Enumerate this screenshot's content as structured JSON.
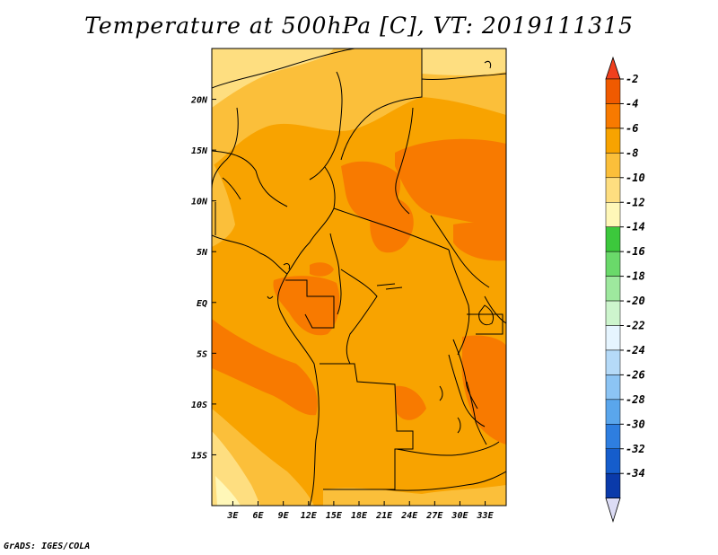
{
  "title": "Temperature at 500hPa [C], VT: 2019111315",
  "credit": "GrADS: IGES/COLA",
  "map": {
    "lon_range": [
      0.5,
      35.5
    ],
    "lat_range": [
      -20,
      25
    ],
    "lat_ticks": [
      {
        "value": 20,
        "label": "20N"
      },
      {
        "value": 15,
        "label": "15N"
      },
      {
        "value": 10,
        "label": "10N"
      },
      {
        "value": 5,
        "label": "5N"
      },
      {
        "value": 0,
        "label": "EQ"
      },
      {
        "value": -5,
        "label": "5S"
      },
      {
        "value": -10,
        "label": "10S"
      },
      {
        "value": -15,
        "label": "15S"
      }
    ],
    "lon_ticks": [
      {
        "value": 3,
        "label": "3E"
      },
      {
        "value": 6,
        "label": "6E"
      },
      {
        "value": 9,
        "label": "9E"
      },
      {
        "value": 12,
        "label": "12E"
      },
      {
        "value": 15,
        "label": "15E"
      },
      {
        "value": 18,
        "label": "18E"
      },
      {
        "value": 21,
        "label": "21E"
      },
      {
        "value": 24,
        "label": "24E"
      },
      {
        "value": 27,
        "label": "27E"
      },
      {
        "value": 30,
        "label": "30E"
      },
      {
        "value": 33,
        "label": "33E"
      }
    ],
    "base_color": "#f8a300"
  },
  "colorbar": {
    "labels": [
      "-2",
      "-4",
      "-6",
      "-8",
      "-10",
      "-12",
      "-14",
      "-16",
      "-18",
      "-20",
      "-22",
      "-24",
      "-26",
      "-28",
      "-30",
      "-32",
      "-34"
    ],
    "colors": [
      "#f05a00",
      "#f87a00",
      "#f8a300",
      "#fbbf3a",
      "#fede80",
      "#fff7b8",
      "#3cc83c",
      "#6ad96a",
      "#9ee89e",
      "#cdf5cd",
      "#e6f5ff",
      "#b5daf8",
      "#8cc4f4",
      "#5aa6ec",
      "#2e7ee0",
      "#155dcc",
      "#0a3aaa",
      "#0a1670"
    ],
    "top_color": "#f0401e",
    "bottom_color": "#dcdcf5"
  }
}
